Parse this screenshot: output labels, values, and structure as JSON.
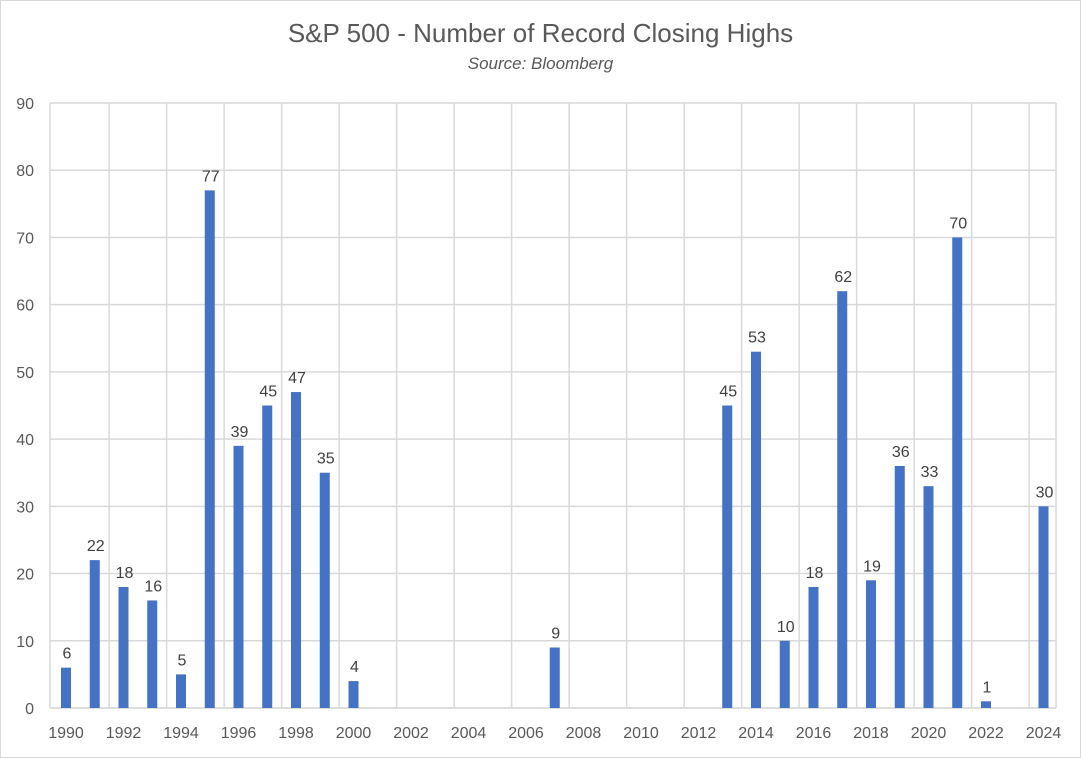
{
  "chart_data": {
    "type": "bar",
    "title": "S&P 500 - Number of Record Closing Highs",
    "subtitle": "Source: Bloomberg",
    "xlabel": "",
    "ylabel": "",
    "ylim": [
      0,
      90
    ],
    "yticks": [
      0,
      10,
      20,
      30,
      40,
      50,
      60,
      70,
      80,
      90
    ],
    "grid": true,
    "bar_color": "#4472C4",
    "categories": [
      1990,
      1991,
      1992,
      1993,
      1994,
      1995,
      1996,
      1997,
      1998,
      1999,
      2000,
      2001,
      2002,
      2003,
      2004,
      2005,
      2006,
      2007,
      2008,
      2009,
      2010,
      2011,
      2012,
      2013,
      2014,
      2015,
      2016,
      2017,
      2018,
      2019,
      2020,
      2021,
      2022,
      2023,
      2024
    ],
    "xtick_labels": [
      "1990",
      "1992",
      "1994",
      "1996",
      "1998",
      "2000",
      "2002",
      "2004",
      "2006",
      "2008",
      "2010",
      "2012",
      "2014",
      "2016",
      "2018",
      "2020",
      "2022",
      "2024"
    ],
    "values": [
      6,
      22,
      18,
      16,
      5,
      77,
      39,
      45,
      47,
      35,
      4,
      0,
      0,
      0,
      0,
      0,
      0,
      9,
      0,
      0,
      0,
      0,
      0,
      45,
      53,
      10,
      18,
      62,
      19,
      36,
      33,
      70,
      1,
      0,
      30
    ],
    "data_labels": [
      "6",
      "22",
      "18",
      "16",
      "5",
      "77",
      "39",
      "45",
      "47",
      "35",
      "4",
      "",
      "",
      "",
      "",
      "",
      "",
      "9",
      "",
      "",
      "",
      "",
      "",
      "45",
      "53",
      "10",
      "18",
      "62",
      "19",
      "36",
      "33",
      "70",
      "1",
      "",
      "30"
    ]
  }
}
